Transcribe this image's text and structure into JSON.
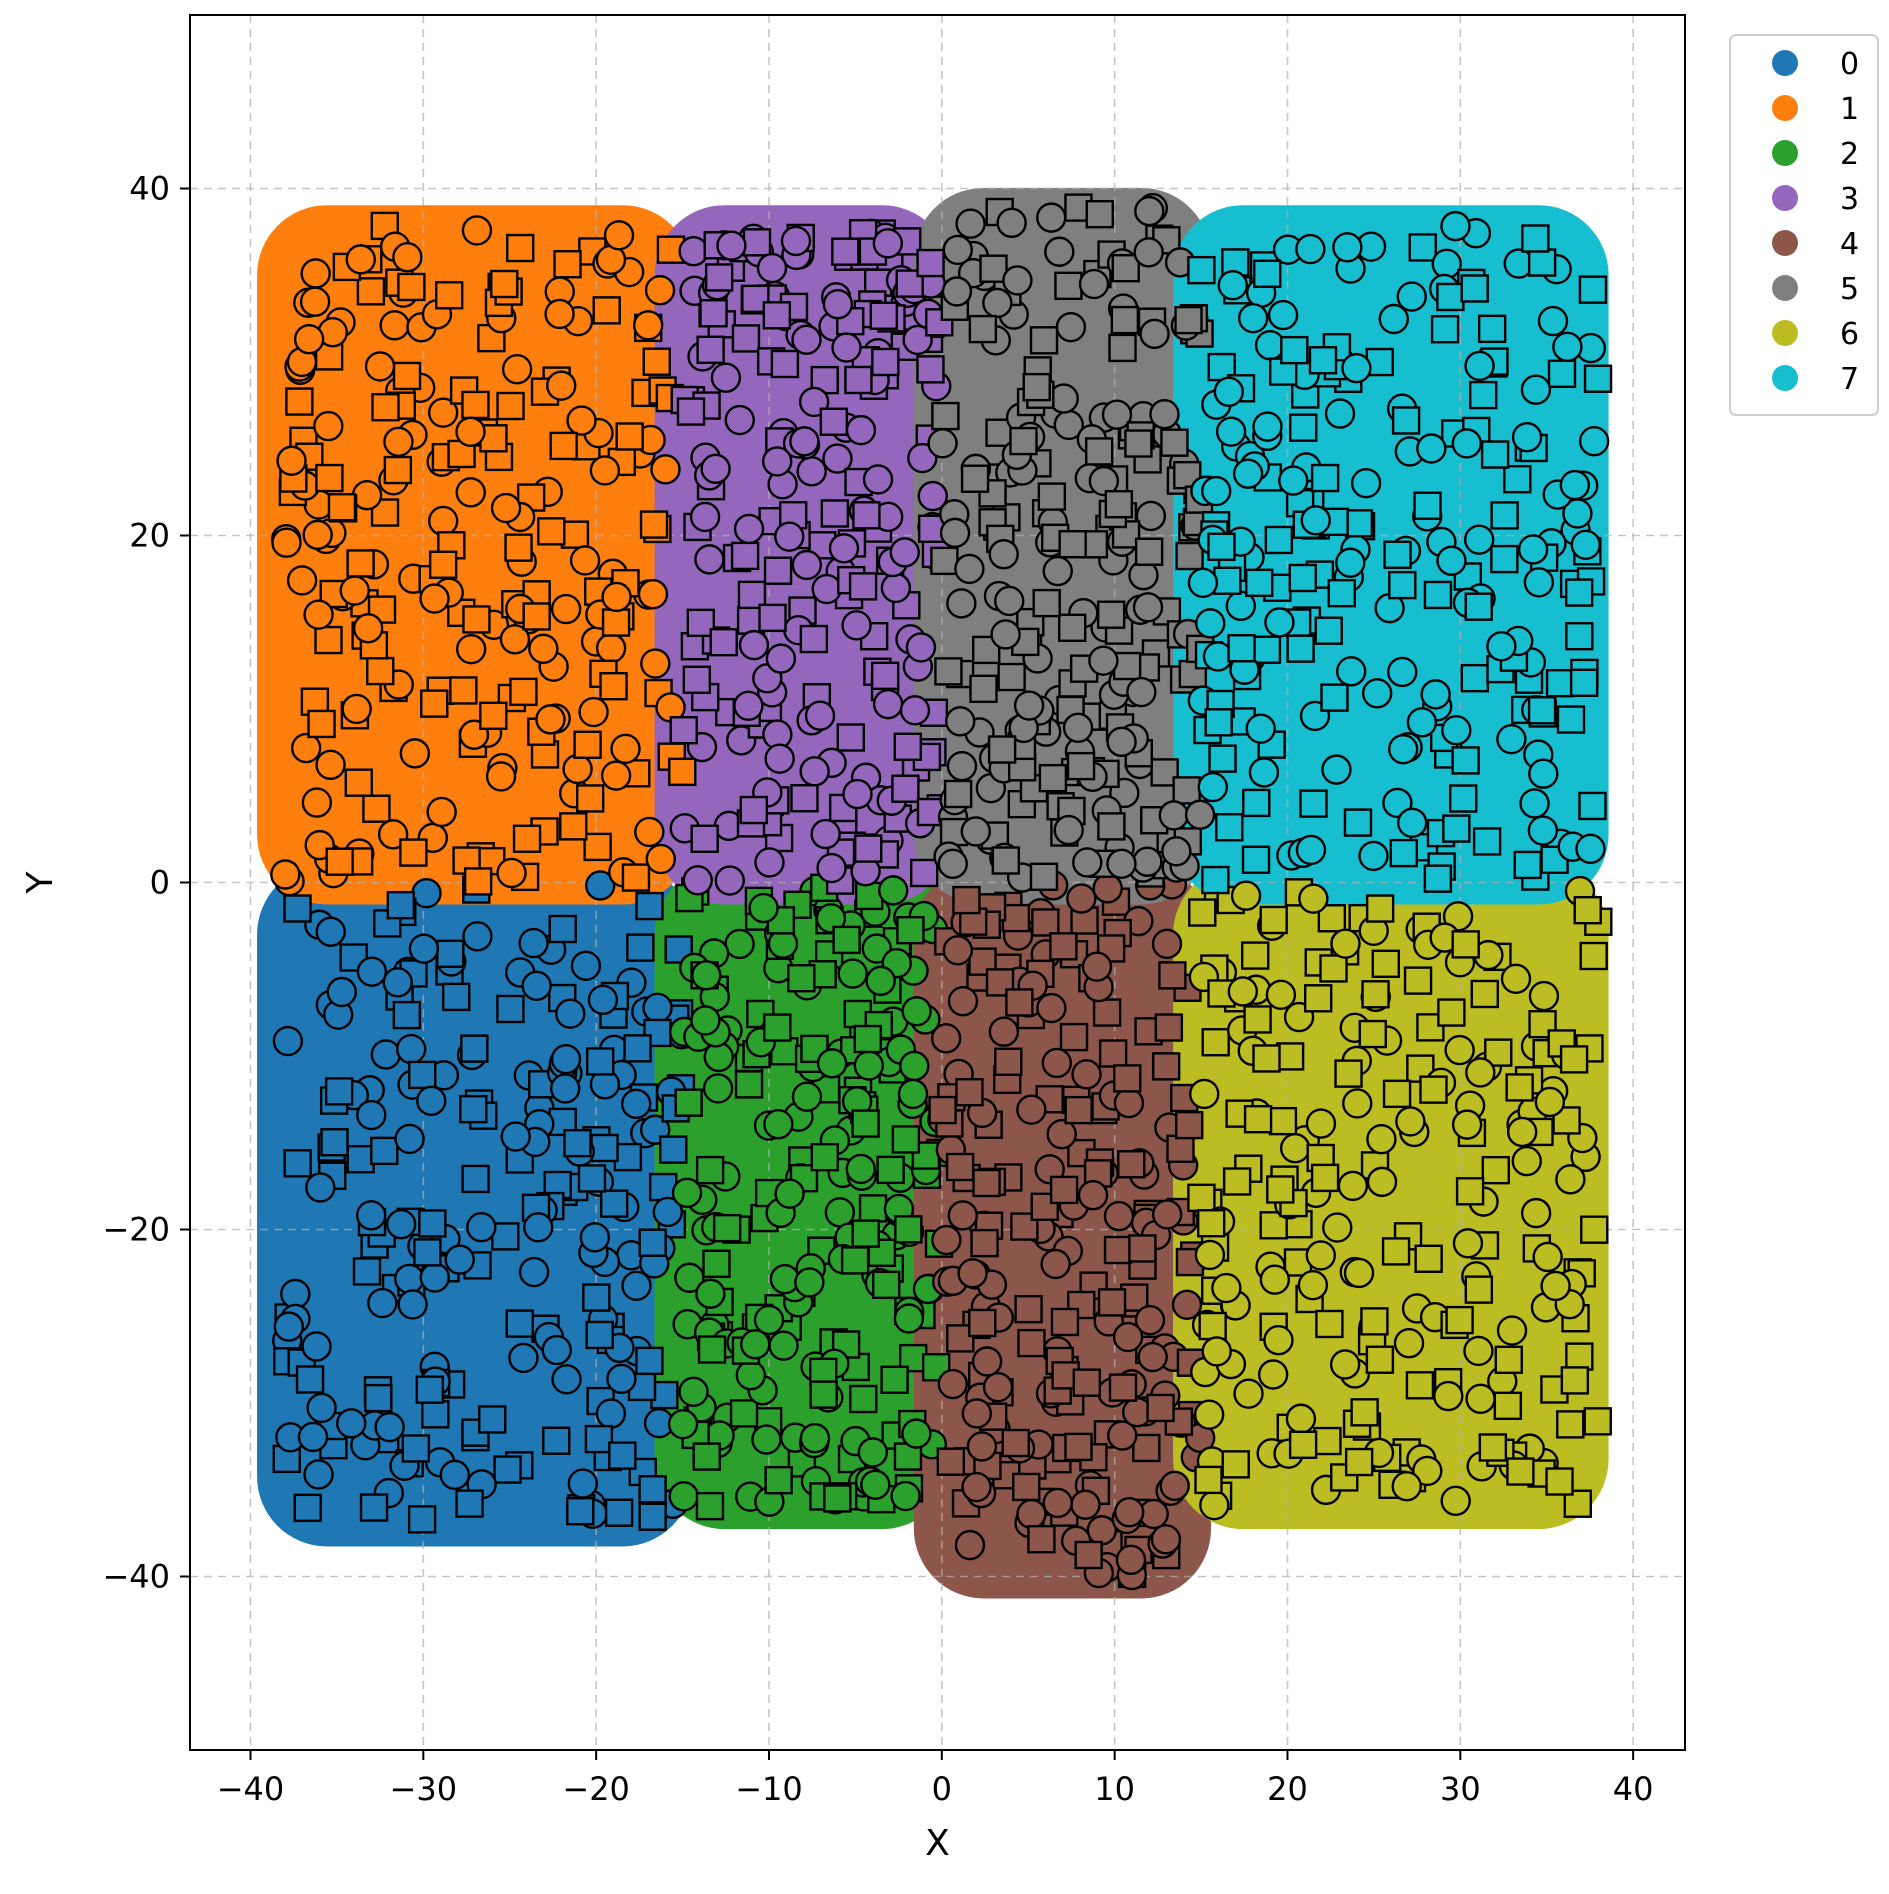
{
  "chart_data": {
    "type": "scatter",
    "title": "",
    "xlabel": "X",
    "ylabel": "Y",
    "xlim": [
      -43.5,
      43
    ],
    "ylim": [
      -50,
      50
    ],
    "xticks": [
      -40,
      -30,
      -20,
      -10,
      0,
      10,
      20,
      30,
      40
    ],
    "yticks": [
      -40,
      -20,
      0,
      20,
      40
    ],
    "xtick_labels": [
      "−40",
      "−30",
      "−20",
      "−10",
      "0",
      "10",
      "20",
      "30",
      "40"
    ],
    "ytick_labels": [
      "−40",
      "−20",
      "0",
      "20",
      "40"
    ],
    "grid": true,
    "legend_position": "outside-top-right",
    "marker_shapes": [
      "circle",
      "square"
    ],
    "series": [
      {
        "name": "0",
        "color": "#1f77b4",
        "x_range": [
          -38,
          -15
        ],
        "y_range": [
          -37,
          0
        ]
      },
      {
        "name": "1",
        "color": "#ff7f0e",
        "x_range": [
          -38,
          -15
        ],
        "y_range": [
          0,
          38
        ]
      },
      {
        "name": "2",
        "color": "#2ca02c",
        "x_range": [
          -15,
          0
        ],
        "y_range": [
          -36,
          0
        ]
      },
      {
        "name": "3",
        "color": "#9467bd",
        "x_range": [
          -15,
          0
        ],
        "y_range": [
          0,
          38
        ]
      },
      {
        "name": "4",
        "color": "#8c564b",
        "x_range": [
          0,
          15
        ],
        "y_range": [
          -40,
          0
        ]
      },
      {
        "name": "5",
        "color": "#7f7f7f",
        "x_range": [
          0,
          15
        ],
        "y_range": [
          0,
          39
        ]
      },
      {
        "name": "6",
        "color": "#bcbd22",
        "x_range": [
          15,
          38
        ],
        "y_range": [
          -36,
          0
        ]
      },
      {
        "name": "7",
        "color": "#17becf",
        "x_range": [
          15,
          38
        ],
        "y_range": [
          0,
          38
        ]
      }
    ]
  }
}
